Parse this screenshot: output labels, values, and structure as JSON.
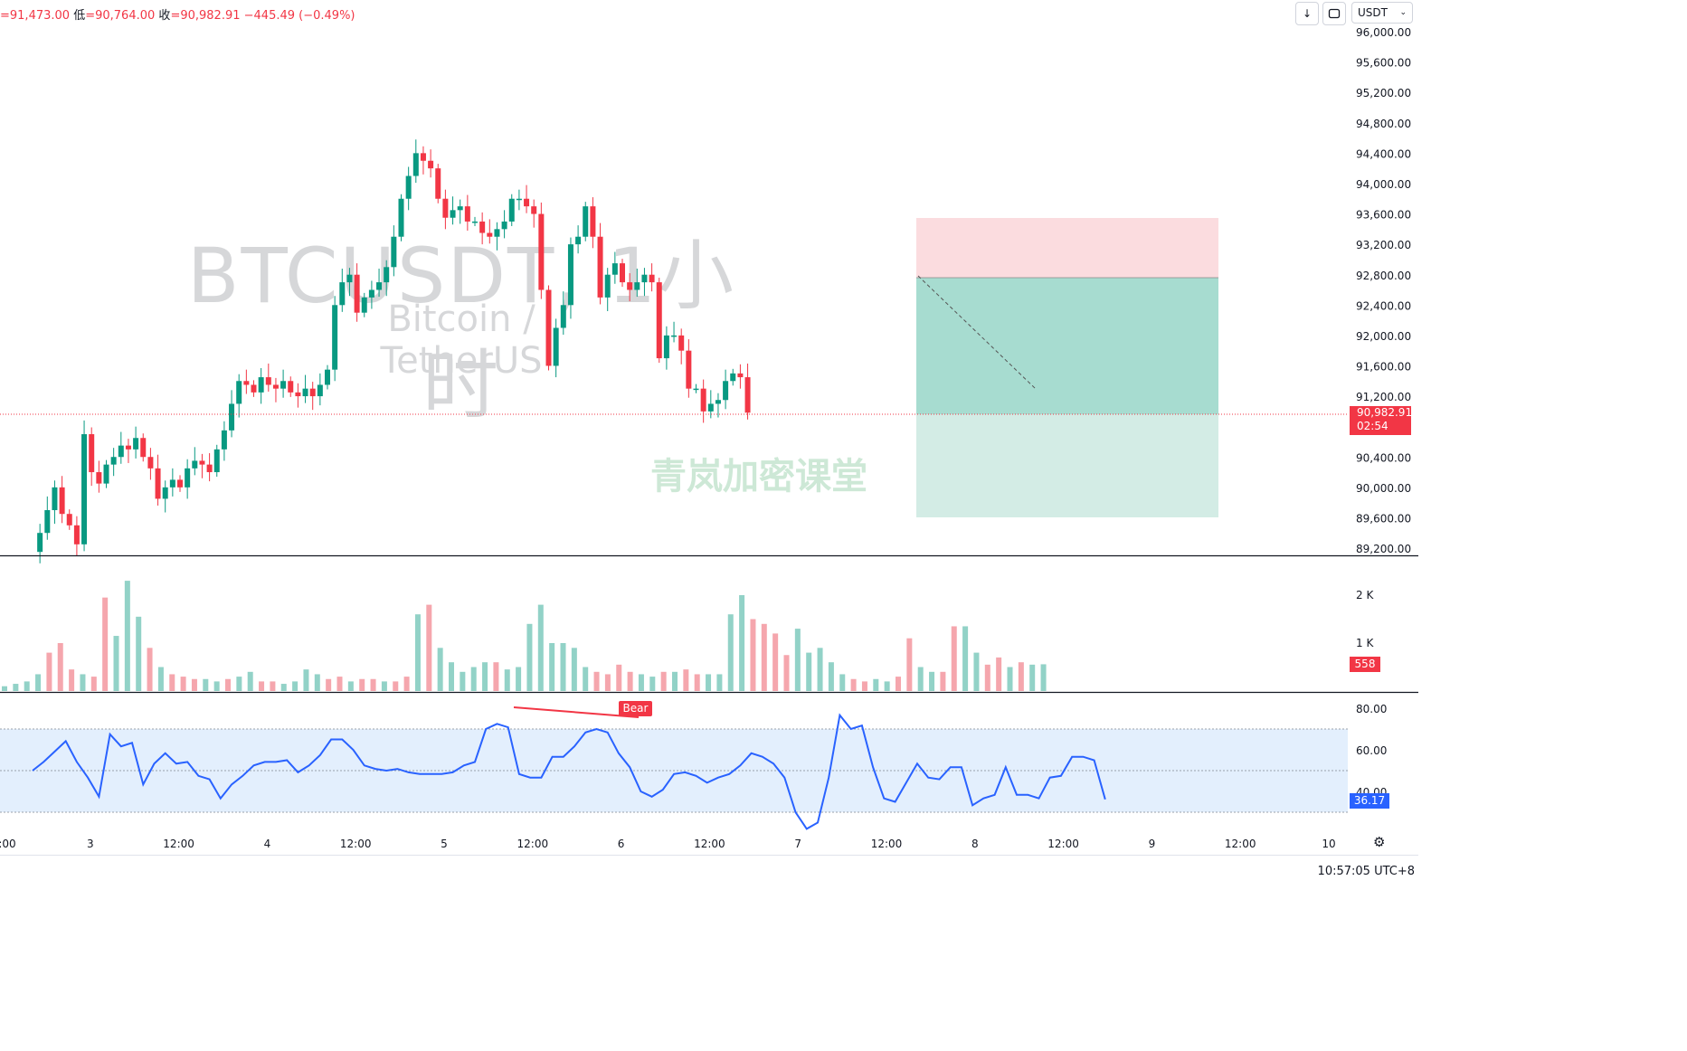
{
  "header": {
    "open_part": "=91,473.00",
    "low_label": "低",
    "low_value": "=90,764.00",
    "close_label": "收",
    "close_value": "=90,982.91",
    "change": "−445.49 (−0.49%)"
  },
  "toolbar": {
    "download_icon": "arrow-down-icon",
    "fullscreen_icon": "expand-icon",
    "currency": "USDT",
    "currency_dropdown_icon": "chevron-down-icon"
  },
  "watermark": {
    "symbol": "BTCUSDT, 1小时",
    "pair_name": "Bitcoin / TetherUS",
    "brand_text": "青岚加密课堂"
  },
  "price_axis": [
    "96,000.00",
    "95,600.00",
    "95,200.00",
    "94,800.00",
    "94,400.00",
    "94,000.00",
    "93,600.00",
    "93,200.00",
    "92,800.00",
    "92,400.00",
    "92,000.00",
    "91,600.00",
    "91,200.00",
    "90,800.00",
    "90,400.00",
    "90,000.00",
    "89,600.00",
    "89,200.00"
  ],
  "price_badge": {
    "price": "90,982.91",
    "countdown": "02:54"
  },
  "volume_axis": [
    "2 K",
    "1 K"
  ],
  "volume_badge": "558",
  "rsi_axis": [
    "80.00",
    "60.00",
    "40.00"
  ],
  "rsi_badge": "36.17",
  "bear_label": "Bear",
  "time_axis": [
    ":00",
    "3",
    "12:00",
    "4",
    "12:00",
    "5",
    "12:00",
    "6",
    "12:00",
    "7",
    "12:00",
    "8",
    "12:00",
    "9",
    "12:00",
    "10"
  ],
  "clock": "10:57:05 UTC+8",
  "colors": {
    "up": "#089981",
    "down": "#f23645",
    "rsi_line": "#2962ff",
    "rsi_band": "#e3effd"
  },
  "chart_data": {
    "type": "candlestick",
    "symbol": "BTCUSDT",
    "interval": "1小时",
    "y_range": [
      89200,
      96200
    ],
    "series": [
      {
        "name": "price_path",
        "values": [
          89150,
          89400,
          89700,
          90000,
          89650,
          89500,
          89250,
          90700,
          90200,
          90050,
          90300,
          90400,
          90550,
          90500,
          90650,
          90400,
          90250,
          89850,
          90000,
          90100,
          90000,
          90250,
          90350,
          90300,
          90200,
          90500,
          90750,
          91100,
          91400,
          91350,
          91250,
          91450,
          91350,
          91300,
          91400,
          91250,
          91200,
          91300,
          91200,
          91350,
          91550,
          92400,
          92700,
          92800,
          92300,
          92500,
          92600,
          92700,
          92900,
          93300,
          93800,
          94100,
          94400,
          94300,
          94200,
          93800,
          93550,
          93650,
          93700,
          93500,
          93500,
          93350,
          93300,
          93400,
          93500,
          93800,
          93800,
          93700,
          93600,
          92600,
          91600,
          92100,
          92400,
          93200,
          93300,
          93700,
          93300,
          92500,
          92800,
          92950,
          92700,
          92600,
          92700,
          92800,
          92700,
          91700,
          92000,
          92000,
          91800,
          91300,
          91300,
          91000,
          91100,
          91150,
          91400,
          91500,
          91450,
          90983
        ]
      }
    ],
    "position_tool": {
      "entry": 92800,
      "stop": 93600,
      "target": 89600
    },
    "volume": {
      "max_label_k": 2,
      "values_note": "per candle, in K",
      "values": [
        0.1,
        0.15,
        0.2,
        0.35,
        0.8,
        1.0,
        0.45,
        0.35,
        0.3,
        1.95,
        1.15,
        2.3,
        1.55,
        0.9,
        0.5,
        0.35,
        0.3,
        0.25,
        0.25,
        0.2,
        0.25,
        0.3,
        0.4,
        0.2,
        0.2,
        0.15,
        0.2,
        0.45,
        0.35,
        0.25,
        0.3,
        0.2,
        0.25,
        0.25,
        0.2,
        0.2,
        0.3,
        1.6,
        1.8,
        0.9,
        0.6,
        0.4,
        0.5,
        0.6,
        0.6,
        0.45,
        0.5,
        1.4,
        1.8,
        1.0,
        1.0,
        0.9,
        0.5,
        0.4,
        0.35,
        0.55,
        0.4,
        0.35,
        0.3,
        0.4,
        0.4,
        0.45,
        0.35,
        0.35,
        0.35,
        1.6,
        2.0,
        1.5,
        1.4,
        1.2,
        0.75,
        1.3,
        0.8,
        0.9,
        0.6,
        0.35,
        0.25,
        0.2,
        0.25,
        0.2,
        0.3,
        1.1,
        0.5,
        0.4,
        0.4,
        1.35,
        1.35,
        0.8,
        0.55,
        0.7,
        0.5,
        0.6,
        0.55,
        0.558
      ]
    },
    "rsi": {
      "upper": 70,
      "mid": 50,
      "lower": 30,
      "ylim": [
        20,
        86
      ],
      "last": 36.17
    }
  }
}
